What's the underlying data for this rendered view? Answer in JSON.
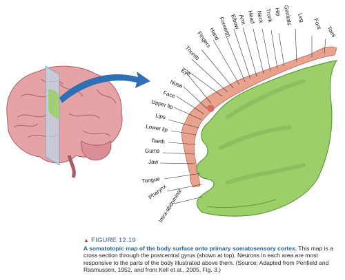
{
  "figure": {
    "number": "FIGURE 12.19",
    "caption_title": "A somatotopic map of the body surface onto primary somatosensory cortex.",
    "caption_text": " This map is a cross section through the postcentral gyrus (shown at top). Neurons in each area are most responsive to the parts of the body illustrated above them. (Source: Adapted from Penfield and Rasmussen, 1952, and from Kell et al., 2005, Fig. 3.)"
  },
  "labels": [
    "Toes",
    "Foot",
    "Leg",
    "Genitals",
    "Hip",
    "Trunk",
    "Neck",
    "Head",
    "Arm",
    "Elbow",
    "Forearm",
    "Hand",
    "Fingers",
    "Thumb",
    "Eye",
    "Nose",
    "Face",
    "Upper lip",
    "Lips",
    "Lower lip",
    "Teeth",
    "Gums",
    "Jaw",
    "Tongue",
    "Pharynx",
    "Intra-abdominal"
  ],
  "colors": {
    "cortex": "#9ccf6a",
    "cortex_dark": "#5e9a3a",
    "brain": "#e6a3a6",
    "homunculus": "#e8a28e",
    "arrow": "#2f6fb5",
    "figure_blue": "#1f5fa8",
    "triangle": "#c0392b"
  }
}
